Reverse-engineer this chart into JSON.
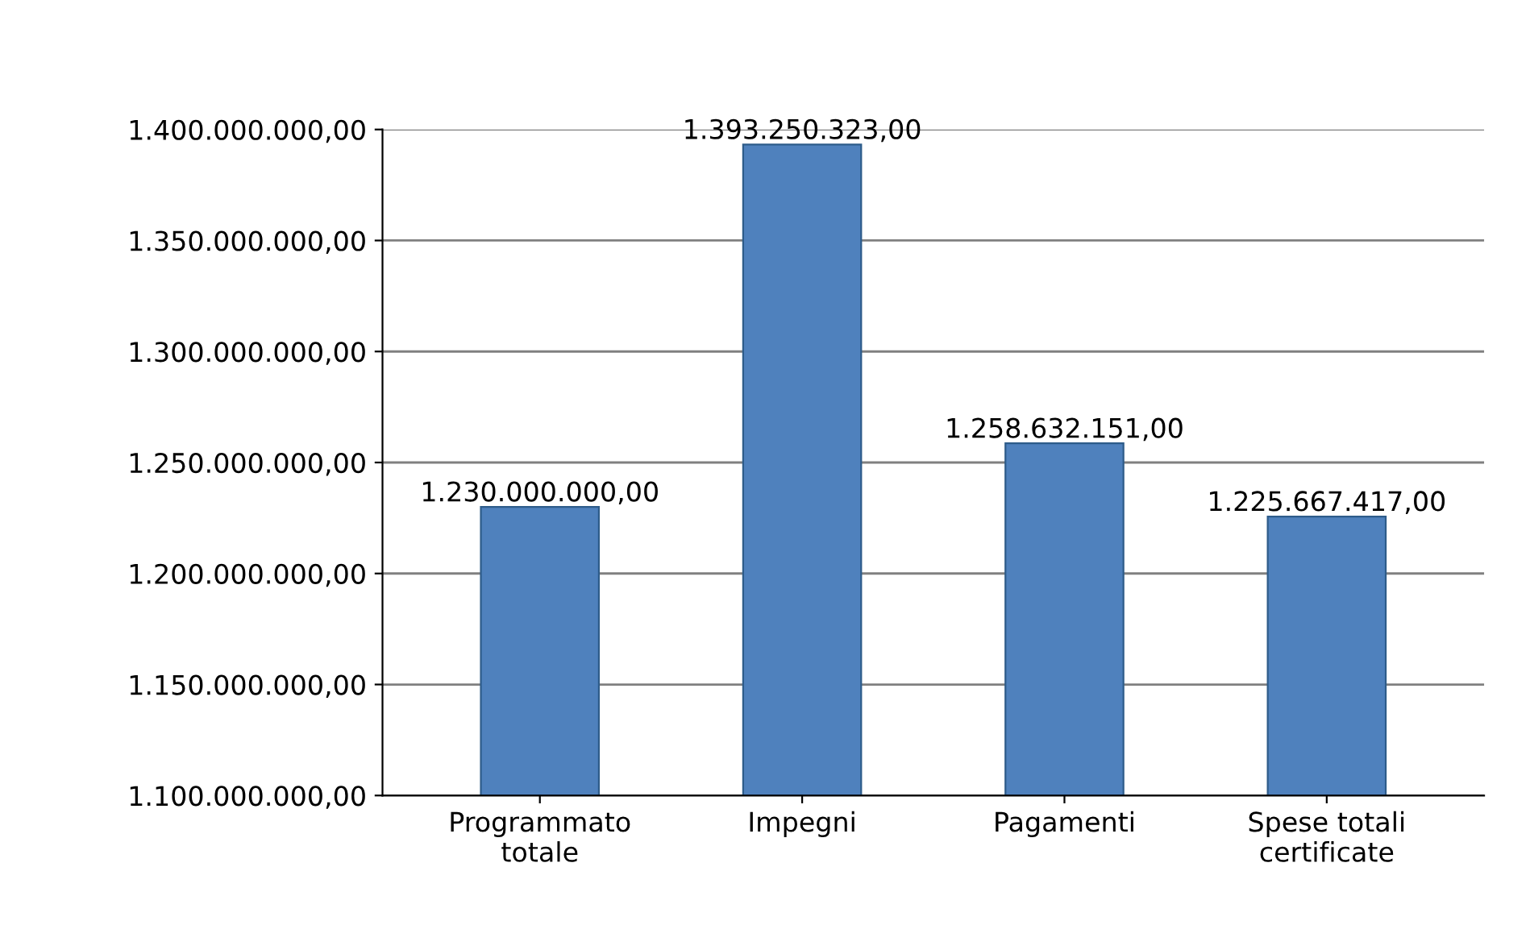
{
  "chart_data": {
    "type": "bar",
    "categories": [
      "Programmato\ntotale",
      "Impegni",
      "Pagamenti",
      "Spese totali\ncertificate"
    ],
    "values": [
      1230000000,
      1393250323,
      1258632151,
      1225667417
    ],
    "value_labels": [
      "1.230.000.000,00",
      "1.393.250.323,00",
      "1.258.632.151,00",
      "1.225.667.417,00"
    ],
    "color": "#4f81bd",
    "ylim": [
      1100000000,
      1400000000
    ],
    "yticks": [
      {
        "value": 1100000000,
        "label": "1.100.000.000,00"
      },
      {
        "value": 1150000000,
        "label": "1.150.000.000,00"
      },
      {
        "value": 1200000000,
        "label": "1.200.000.000,00"
      },
      {
        "value": 1250000000,
        "label": "1.250.000.000,00"
      },
      {
        "value": 1300000000,
        "label": "1.300.000.000,00"
      },
      {
        "value": 1350000000,
        "label": "1.350.000.000,00"
      },
      {
        "value": 1400000000,
        "label": "1.400.000.000,00"
      }
    ],
    "grid": "y"
  }
}
